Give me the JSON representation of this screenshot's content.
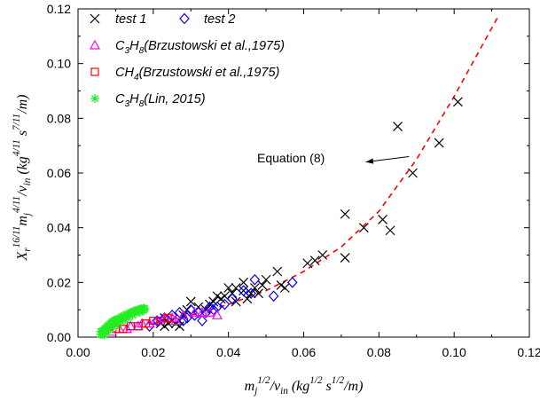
{
  "chart_data": {
    "type": "scatter",
    "xlim": [
      0.0,
      0.12
    ],
    "ylim": [
      0.0,
      0.12
    ],
    "x_ticks": [
      "0.00",
      "0.02",
      "0.04",
      "0.06",
      "0.08",
      "0.10",
      "0.12"
    ],
    "y_ticks": [
      "0.00",
      "0.02",
      "0.04",
      "0.06",
      "0.08",
      "0.10",
      "0.12"
    ],
    "xlabel": {
      "parts": [
        {
          "t": "m",
          "s": "n"
        },
        {
          "t": "j",
          "s": "sub"
        },
        {
          "t": "1/2",
          "s": "sup"
        },
        {
          "t": "/v",
          "s": "n"
        },
        {
          "t": "in",
          "s": "sub"
        },
        {
          "t": " (kg",
          "s": "n"
        },
        {
          "t": "1/2",
          "s": "sup"
        },
        {
          "t": " s",
          "s": "n"
        },
        {
          "t": "1/2",
          "s": "sup"
        },
        {
          "t": "/m)",
          "s": "n"
        }
      ]
    },
    "ylabel": {
      "parts": [
        {
          "t": "X",
          "s": "n"
        },
        {
          "t": "r",
          "s": "sub"
        },
        {
          "t": "16/11",
          "s": "sup"
        },
        {
          "t": "m",
          "s": "n"
        },
        {
          "t": "j",
          "s": "sub"
        },
        {
          "t": "4/11",
          "s": "sup"
        },
        {
          "t": "/v",
          "s": "n"
        },
        {
          "t": "in",
          "s": "sub"
        },
        {
          "t": " (kg",
          "s": "n"
        },
        {
          "t": "4/11",
          "s": "sup"
        },
        {
          "t": " s",
          "s": "n"
        },
        {
          "t": "7/11",
          "s": "sup"
        },
        {
          "t": "/m)",
          "s": "n"
        }
      ]
    },
    "annotation": {
      "text": "Equation (8)",
      "arrow_from": [
        0.088,
        0.066
      ],
      "arrow_to": [
        0.0765,
        0.064
      ]
    },
    "legend": [
      {
        "series": "test1",
        "parts": [
          {
            "t": "test 1",
            "s": "n"
          }
        ]
      },
      {
        "series": "test2",
        "parts": [
          {
            "t": "test 2",
            "s": "n"
          }
        ]
      },
      {
        "series": "c3h8_brz",
        "parts": [
          {
            "t": "C",
            "s": "n"
          },
          {
            "t": "3",
            "s": "sub"
          },
          {
            "t": "H",
            "s": "n"
          },
          {
            "t": "8",
            "s": "sub"
          },
          {
            "t": "(Brzustowski et al.,1975)",
            "s": "n"
          }
        ]
      },
      {
        "series": "ch4_brz",
        "parts": [
          {
            "t": "CH",
            "s": "n"
          },
          {
            "t": "4",
            "s": "sub"
          },
          {
            "t": "(Brzustowski et al.,1975)",
            "s": "n"
          }
        ]
      },
      {
        "series": "c3h8_lin",
        "parts": [
          {
            "t": "C",
            "s": "n"
          },
          {
            "t": "3",
            "s": "sub"
          },
          {
            "t": "H",
            "s": "n"
          },
          {
            "t": "8",
            "s": "sub"
          },
          {
            "t": "(Lin, 2015)",
            "s": "n"
          }
        ]
      }
    ],
    "series": [
      {
        "id": "test1",
        "marker": "x",
        "color": "#000000",
        "points": [
          [
            0.085,
            0.077
          ],
          [
            0.101,
            0.086
          ],
          [
            0.096,
            0.071
          ],
          [
            0.089,
            0.06
          ],
          [
            0.071,
            0.045
          ],
          [
            0.076,
            0.04
          ],
          [
            0.081,
            0.043
          ],
          [
            0.083,
            0.039
          ],
          [
            0.071,
            0.029
          ],
          [
            0.061,
            0.027
          ],
          [
            0.065,
            0.03
          ],
          [
            0.063,
            0.028
          ],
          [
            0.053,
            0.024
          ],
          [
            0.05,
            0.021
          ],
          [
            0.049,
            0.019
          ],
          [
            0.047,
            0.018
          ],
          [
            0.046,
            0.016
          ],
          [
            0.044,
            0.017
          ],
          [
            0.042,
            0.018
          ],
          [
            0.041,
            0.016
          ],
          [
            0.04,
            0.018
          ],
          [
            0.039,
            0.015
          ],
          [
            0.038,
            0.014
          ],
          [
            0.037,
            0.015
          ],
          [
            0.036,
            0.013
          ],
          [
            0.035,
            0.012
          ],
          [
            0.034,
            0.01
          ],
          [
            0.032,
            0.011
          ],
          [
            0.03,
            0.013
          ],
          [
            0.029,
            0.01
          ],
          [
            0.028,
            0.008
          ],
          [
            0.027,
            0.006
          ],
          [
            0.026,
            0.005
          ],
          [
            0.025,
            0.006
          ],
          [
            0.024,
            0.005
          ],
          [
            0.023,
            0.007
          ],
          [
            0.022,
            0.005
          ],
          [
            0.027,
            0.004
          ],
          [
            0.023,
            0.004
          ],
          [
            0.054,
            0.019
          ],
          [
            0.042,
            0.013
          ],
          [
            0.044,
            0.02
          ],
          [
            0.048,
            0.016
          ],
          [
            0.055,
            0.018
          ],
          [
            0.045,
            0.014
          ]
        ]
      },
      {
        "id": "test2",
        "marker": "diamond",
        "color": "#0000ff",
        "points": [
          [
            0.057,
            0.02
          ],
          [
            0.052,
            0.015
          ],
          [
            0.047,
            0.021
          ],
          [
            0.044,
            0.017
          ],
          [
            0.041,
            0.014
          ],
          [
            0.039,
            0.012
          ],
          [
            0.037,
            0.011
          ],
          [
            0.036,
            0.01
          ],
          [
            0.034,
            0.009
          ],
          [
            0.033,
            0.006
          ],
          [
            0.031,
            0.008
          ],
          [
            0.03,
            0.01
          ],
          [
            0.029,
            0.007
          ],
          [
            0.027,
            0.009
          ],
          [
            0.025,
            0.008
          ],
          [
            0.023,
            0.007
          ],
          [
            0.021,
            0.006
          ],
          [
            0.019,
            0.004
          ],
          [
            0.046,
            0.016
          ],
          [
            0.032,
            0.009
          ],
          [
            0.028,
            0.006
          ],
          [
            0.035,
            0.011
          ]
        ]
      },
      {
        "id": "c3h8_brz",
        "marker": "triangle",
        "color": "#ff00ff",
        "points": [
          [
            0.009,
            0.002
          ],
          [
            0.011,
            0.003
          ],
          [
            0.013,
            0.003
          ],
          [
            0.014,
            0.004
          ],
          [
            0.016,
            0.004
          ],
          [
            0.017,
            0.005
          ],
          [
            0.019,
            0.005
          ],
          [
            0.021,
            0.006
          ],
          [
            0.023,
            0.007
          ],
          [
            0.025,
            0.007
          ],
          [
            0.028,
            0.008
          ],
          [
            0.031,
            0.009
          ],
          [
            0.035,
            0.009
          ],
          [
            0.037,
            0.008
          ],
          [
            0.033,
            0.009
          ],
          [
            0.026,
            0.006
          ]
        ]
      },
      {
        "id": "ch4_brz",
        "marker": "square",
        "color": "#ff0000",
        "points": [
          [
            0.01,
            0.003
          ],
          [
            0.012,
            0.003
          ],
          [
            0.014,
            0.004
          ],
          [
            0.016,
            0.004
          ],
          [
            0.018,
            0.005
          ],
          [
            0.02,
            0.006
          ],
          [
            0.022,
            0.006
          ],
          [
            0.024,
            0.007
          ]
        ]
      },
      {
        "id": "c3h8_lin",
        "marker": "star",
        "color": "#22ee22",
        "points": [
          [
            0.006,
            0.001
          ],
          [
            0.0063,
            0.002
          ],
          [
            0.0066,
            0.0024
          ],
          [
            0.0068,
            0.002
          ],
          [
            0.007,
            0.003
          ],
          [
            0.0072,
            0.0028
          ],
          [
            0.0074,
            0.0035
          ],
          [
            0.0076,
            0.003
          ],
          [
            0.0078,
            0.004
          ],
          [
            0.008,
            0.0038
          ],
          [
            0.0082,
            0.0045
          ],
          [
            0.0084,
            0.004
          ],
          [
            0.0086,
            0.005
          ],
          [
            0.0088,
            0.0048
          ],
          [
            0.009,
            0.0055
          ],
          [
            0.0092,
            0.005
          ],
          [
            0.0094,
            0.0058
          ],
          [
            0.0096,
            0.0055
          ],
          [
            0.0098,
            0.0062
          ],
          [
            0.01,
            0.006
          ],
          [
            0.0103,
            0.0065
          ],
          [
            0.0106,
            0.0062
          ],
          [
            0.0109,
            0.007
          ],
          [
            0.0112,
            0.0068
          ],
          [
            0.0115,
            0.0074
          ],
          [
            0.0118,
            0.0072
          ],
          [
            0.0121,
            0.0078
          ],
          [
            0.0124,
            0.0076
          ],
          [
            0.0127,
            0.0082
          ],
          [
            0.013,
            0.008
          ],
          [
            0.0133,
            0.0086
          ],
          [
            0.0136,
            0.0084
          ],
          [
            0.0139,
            0.009
          ],
          [
            0.0142,
            0.0088
          ],
          [
            0.0145,
            0.0093
          ],
          [
            0.0148,
            0.0091
          ],
          [
            0.0151,
            0.0096
          ],
          [
            0.0154,
            0.0094
          ],
          [
            0.0157,
            0.0099
          ],
          [
            0.016,
            0.0097
          ],
          [
            0.0163,
            0.0102
          ],
          [
            0.0166,
            0.01
          ],
          [
            0.0169,
            0.0104
          ],
          [
            0.0172,
            0.0102
          ],
          [
            0.0175,
            0.0106
          ],
          [
            0.0178,
            0.0103
          ],
          [
            0.0065,
            0.001
          ],
          [
            0.0075,
            0.0018
          ],
          [
            0.0085,
            0.0028
          ],
          [
            0.0095,
            0.0038
          ],
          [
            0.0105,
            0.0046
          ],
          [
            0.0115,
            0.0056
          ],
          [
            0.0125,
            0.0064
          ],
          [
            0.0135,
            0.0072
          ],
          [
            0.0145,
            0.008
          ],
          [
            0.0155,
            0.0088
          ],
          [
            0.0165,
            0.0092
          ],
          [
            0.0175,
            0.0098
          ],
          [
            0.006,
            0.002
          ],
          [
            0.007,
            0.0008
          ]
        ]
      }
    ],
    "fit_curve": {
      "name": "Equation (8)",
      "color": "#ff0000",
      "style": "dashed",
      "points": [
        [
          0.02,
          0.005
        ],
        [
          0.03,
          0.008
        ],
        [
          0.04,
          0.012
        ],
        [
          0.05,
          0.017
        ],
        [
          0.06,
          0.024
        ],
        [
          0.07,
          0.033
        ],
        [
          0.08,
          0.046
        ],
        [
          0.09,
          0.065
        ],
        [
          0.1,
          0.088
        ],
        [
          0.108,
          0.108
        ],
        [
          0.112,
          0.118
        ]
      ]
    }
  }
}
